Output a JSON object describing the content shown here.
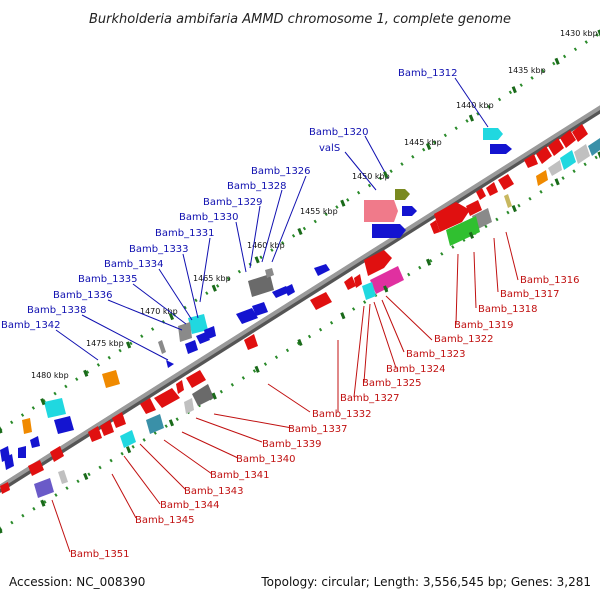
{
  "title": "Burkholderia ambifaria AMMD chromosome 1, complete genome",
  "footer": {
    "accession": "Accession: NC_008390",
    "summary": "Topology: circular; Length: 3,556,545 bp; Genes: 3,281"
  },
  "colors": {
    "backbone": "#808080",
    "ruler_dot": "#2a8a2a",
    "ruler_major": "#1a6a1a",
    "label_blue": "#1010b0",
    "label_red": "#c01010",
    "gene_red": "#e01010",
    "gene_blue": "#1414d0",
    "gene_cyan": "#20d8e0",
    "gene_gray": "#8a8a8a",
    "gene_orange": "#f08a00",
    "gene_green": "#30c030",
    "gene_pink": "#f07a8a",
    "gene_magenta": "#e030a0",
    "gene_olive": "#7a8a20",
    "gene_purple": "#6a5ac8",
    "gene_teal": "#3a90a8",
    "gene_khaki": "#c8b860"
  },
  "kbp_labels": [
    "1430 kbp",
    "1435 kbp",
    "1440 kbp",
    "1445 kbp",
    "1450 kbp",
    "1455 kbp",
    "1460 kbp",
    "1465 kbp",
    "1470 kbp",
    "1475 kbp",
    "1480 kbp"
  ],
  "labels_top": [
    "Bamb_1312",
    "Bamb_1320",
    "valS",
    "Bamb_1326",
    "Bamb_1328",
    "Bamb_1329",
    "Bamb_1330",
    "Bamb_1331",
    "Bamb_1333",
    "Bamb_1334",
    "Bamb_1335",
    "Bamb_1336",
    "Bamb_1338",
    "Bamb_1342"
  ],
  "labels_bottom": [
    "Bamb_1316",
    "Bamb_1317",
    "Bamb_1318",
    "Bamb_1319",
    "Bamb_1322",
    "Bamb_1323",
    "Bamb_1324",
    "Bamb_1325",
    "Bamb_1327",
    "Bamb_1332",
    "Bamb_1337",
    "Bamb_1339",
    "Bamb_1340",
    "Bamb_1341",
    "Bamb_1343",
    "Bamb_1344",
    "Bamb_1345",
    "Bamb_1351"
  ]
}
